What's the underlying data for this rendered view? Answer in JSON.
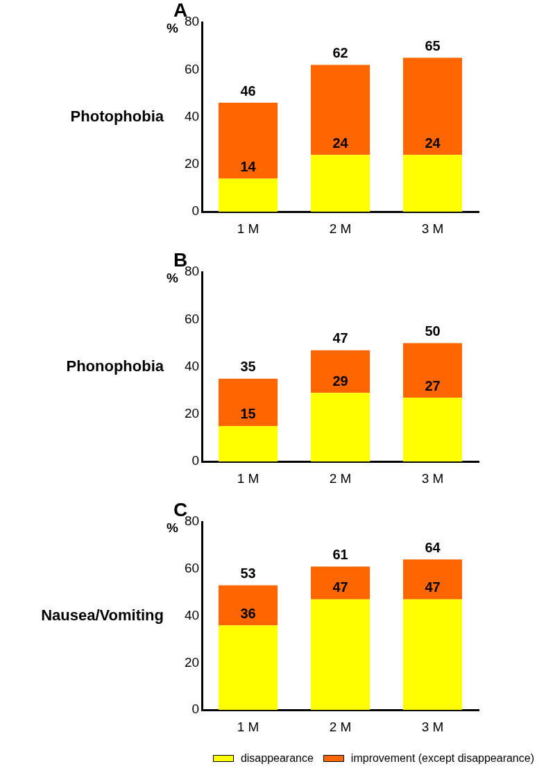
{
  "chart_data": [
    {
      "type": "bar",
      "title": "A",
      "subtitle": "Photophobia",
      "ylabel": "%",
      "categories": [
        "1 M",
        "2 M",
        "3 M"
      ],
      "stacked": true,
      "series": [
        {
          "color": "#ffff00",
          "values": [
            14,
            24,
            24
          ],
          "value_labels": [
            "14",
            "24",
            "24"
          ]
        },
        {
          "color": "#ff6600",
          "values": [
            32,
            38,
            41
          ]
        }
      ],
      "totals": [
        "46",
        "62",
        "65"
      ],
      "ylim": [
        0,
        80
      ],
      "yticks": [
        0,
        20,
        40,
        60,
        80
      ],
      "legend": false
    },
    {
      "type": "bar",
      "title": "B",
      "subtitle": "Phonophobia",
      "ylabel": "%",
      "categories": [
        "1 M",
        "2 M",
        "3 M"
      ],
      "stacked": true,
      "series": [
        {
          "color": "#ffff00",
          "values": [
            15,
            29,
            27
          ],
          "value_labels": [
            "15",
            "29",
            "27"
          ]
        },
        {
          "color": "#ff6600",
          "values": [
            20,
            18,
            23
          ]
        }
      ],
      "totals": [
        "35",
        "47",
        "50"
      ],
      "ylim": [
        0,
        80
      ],
      "yticks": [
        0,
        20,
        40,
        60,
        80
      ],
      "legend": false
    },
    {
      "type": "bar",
      "title": "C",
      "subtitle": "Nausea/Vomiting",
      "ylabel": "%",
      "categories": [
        "1 M",
        "2 M",
        "3 M"
      ],
      "stacked": true,
      "series": [
        {
          "name": "disappearance",
          "color": "#ffff00",
          "values": [
            36,
            47,
            47
          ],
          "value_labels": [
            "36",
            "47",
            "47"
          ]
        },
        {
          "name": "improvement (except disappearance)",
          "color": "#ff6600",
          "values": [
            17,
            14,
            17
          ]
        }
      ],
      "totals": [
        "53",
        "61",
        "64"
      ],
      "ylim": [
        0,
        80
      ],
      "yticks": [
        0,
        20,
        40,
        60,
        80
      ],
      "legend": "bottom"
    }
  ]
}
